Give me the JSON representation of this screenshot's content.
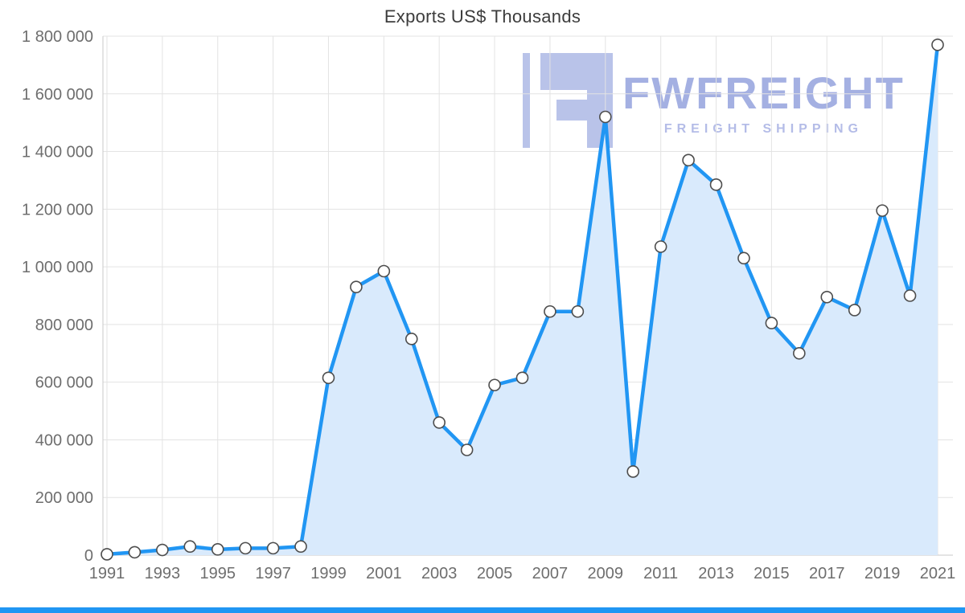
{
  "page": {
    "title": "Exports US$ Thousands"
  },
  "watermark": {
    "brand": "FWFREIGHT",
    "tagline": "FREIGHT SHIPPING",
    "logo_icon": "fwfreight-logo",
    "color": "#a6b1e1"
  },
  "colors": {
    "line": "#2196f3",
    "area_fill": "#d9eafc",
    "marker_fill": "#ffffff",
    "marker_stroke": "#4d4d4d",
    "grid": "#e3e3e3",
    "axis_line": "#c9c9c9",
    "axis_text": "#6e6e6e",
    "title_text": "#3c3c3c",
    "bottom_bar": "#2196f3",
    "watermark_fill": "#b4bee8"
  },
  "chart_data": {
    "type": "area",
    "title": "Exports US$ Thousands",
    "x": [
      1991,
      1992,
      1993,
      1994,
      1995,
      1996,
      1997,
      1998,
      1999,
      2000,
      2001,
      2002,
      2003,
      2004,
      2005,
      2006,
      2007,
      2008,
      2009,
      2010,
      2011,
      2012,
      2013,
      2014,
      2015,
      2016,
      2017,
      2018,
      2019,
      2020,
      2021
    ],
    "values": [
      3000,
      10000,
      18000,
      30000,
      20000,
      24000,
      24000,
      30000,
      615000,
      930000,
      985000,
      750000,
      460000,
      365000,
      590000,
      615000,
      845000,
      845000,
      1520000,
      290000,
      1070000,
      1370000,
      1285000,
      1030000,
      805000,
      700000,
      895000,
      850000,
      1195000,
      900000,
      1770000
    ],
    "x_tick_labels": [
      "1991",
      "1993",
      "1995",
      "1997",
      "1999",
      "2001",
      "2003",
      "2005",
      "2007",
      "2009",
      "2011",
      "2013",
      "2015",
      "2017",
      "2019",
      "2021"
    ],
    "y_ticks": [
      0,
      200000,
      400000,
      600000,
      800000,
      1000000,
      1200000,
      1400000,
      1600000,
      1800000
    ],
    "y_tick_labels": [
      "0",
      "200 000",
      "400 000",
      "600 000",
      "800 000",
      "1 000 000",
      "1 200 000",
      "1 400 000",
      "1 600 000",
      "1 800 000"
    ],
    "ylim": [
      0,
      1800000
    ],
    "xlabel": "",
    "ylabel": "",
    "grid": true,
    "legend": "none"
  }
}
